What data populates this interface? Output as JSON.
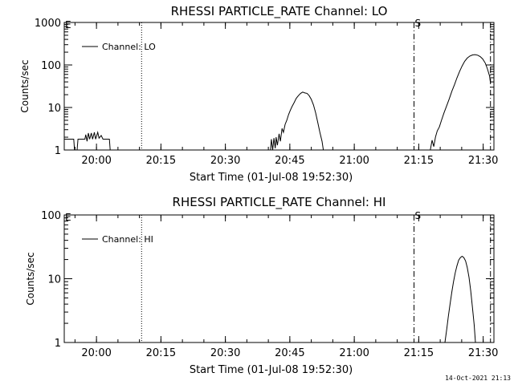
{
  "footer": {
    "timestamp": "14-Oct-2021 21:13"
  },
  "chart_data": [
    {
      "type": "line",
      "title": "RHESSI PARTICLE_RATE Channel: LO",
      "xlabel": "Start Time (01-Jul-08 19:52:30)",
      "ylabel": "Counts/sec",
      "yscale": "log",
      "ylim": [
        1,
        1000
      ],
      "xlim_minutes": [
        0,
        100
      ],
      "x_ticks": [
        {
          "min": 7.5,
          "label": "20:00"
        },
        {
          "min": 22.5,
          "label": "20:15"
        },
        {
          "min": 37.5,
          "label": "20:30"
        },
        {
          "min": 52.5,
          "label": "20:45"
        },
        {
          "min": 67.5,
          "label": "21:00"
        },
        {
          "min": 82.5,
          "label": "21:15"
        },
        {
          "min": 97.5,
          "label": "21:30"
        }
      ],
      "y_ticks": [
        {
          "v": 1,
          "label": "1"
        },
        {
          "v": 10,
          "label": "10"
        },
        {
          "v": 100,
          "label": "100"
        },
        {
          "v": 1000,
          "label": "1000"
        }
      ],
      "vlines": [
        {
          "min": 18.0,
          "style": "dotted"
        },
        {
          "min": 81.4,
          "style": "dashdot",
          "label": "S"
        },
        {
          "min": 99.2,
          "style": "dashdot"
        }
      ],
      "corner_marker": "E",
      "legend": {
        "label": "Channel: LO",
        "placement": "top-left"
      },
      "series": [
        {
          "name": "Channel: LO",
          "segments": [
            [
              [
                0,
                1.8
              ],
              [
                1.5,
                1.8
              ],
              [
                2.2,
                1.8
              ],
              [
                2.4,
                1.0
              ],
              [
                3.0,
                1.0
              ],
              [
                3.2,
                1.8
              ],
              [
                4.8,
                1.8
              ],
              [
                5.0,
                2.3
              ],
              [
                5.3,
                1.6
              ],
              [
                5.6,
                2.5
              ],
              [
                5.9,
                1.8
              ],
              [
                6.3,
                2.5
              ],
              [
                6.6,
                1.8
              ],
              [
                7.0,
                2.6
              ],
              [
                7.3,
                1.8
              ],
              [
                7.8,
                2.6
              ],
              [
                8.1,
                1.9
              ],
              [
                8.6,
                2.2
              ],
              [
                9.0,
                1.8
              ],
              [
                10.5,
                1.8
              ],
              [
                10.7,
                1.0
              ]
            ],
            [
              [
                48.0,
                1.0
              ],
              [
                48.2,
                1.8
              ],
              [
                48.5,
                1.0
              ],
              [
                48.8,
                1.9
              ],
              [
                49.1,
                1.1
              ],
              [
                49.3,
                2.0
              ],
              [
                49.6,
                1.3
              ],
              [
                50.0,
                2.4
              ],
              [
                50.3,
                1.6
              ],
              [
                50.7,
                3.2
              ],
              [
                51.0,
                2.6
              ],
              [
                51.4,
                4.0
              ],
              [
                51.8,
                5.0
              ],
              [
                52.2,
                6.8
              ],
              [
                52.6,
                8.5
              ],
              [
                53.0,
                10.5
              ],
              [
                53.5,
                13.0
              ],
              [
                54.0,
                16.5
              ],
              [
                54.5,
                19.0
              ],
              [
                55.0,
                21.5
              ],
              [
                55.5,
                23.0
              ],
              [
                56.0,
                22.0
              ],
              [
                56.5,
                21.5
              ],
              [
                57.0,
                19.0
              ],
              [
                57.5,
                15.5
              ],
              [
                58.0,
                11.5
              ],
              [
                58.5,
                7.5
              ],
              [
                59.0,
                4.5
              ],
              [
                59.5,
                2.6
              ],
              [
                60.0,
                1.6
              ],
              [
                60.3,
                1.0
              ]
            ],
            [
              [
                85.2,
                1.0
              ],
              [
                85.6,
                1.7
              ],
              [
                86.0,
                1.2
              ],
              [
                86.4,
                2.0
              ],
              [
                86.8,
                2.8
              ],
              [
                87.3,
                3.5
              ],
              [
                87.8,
                5.0
              ],
              [
                88.4,
                7.5
              ],
              [
                89.0,
                11.0
              ],
              [
                89.6,
                16.0
              ],
              [
                90.2,
                24.0
              ],
              [
                90.8,
                34.0
              ],
              [
                91.4,
                50.0
              ],
              [
                92.0,
                70.0
              ],
              [
                92.6,
                95.0
              ],
              [
                93.2,
                122.0
              ],
              [
                93.8,
                145.0
              ],
              [
                94.4,
                162.0
              ],
              [
                95.0,
                172.0
              ],
              [
                95.6,
                175.0
              ],
              [
                96.2,
                170.0
              ],
              [
                96.8,
                158.0
              ],
              [
                97.4,
                138.0
              ],
              [
                98.0,
                110.0
              ],
              [
                98.5,
                80.0
              ],
              [
                99.0,
                55.0
              ],
              [
                99.2,
                38.0
              ]
            ]
          ]
        }
      ]
    },
    {
      "type": "line",
      "title": "RHESSI PARTICLE_RATE Channel: HI",
      "xlabel": "Start Time (01-Jul-08 19:52:30)",
      "ylabel": "Counts/sec",
      "yscale": "log",
      "ylim": [
        1,
        100
      ],
      "xlim_minutes": [
        0,
        100
      ],
      "x_ticks": [
        {
          "min": 7.5,
          "label": "20:00"
        },
        {
          "min": 22.5,
          "label": "20:15"
        },
        {
          "min": 37.5,
          "label": "20:30"
        },
        {
          "min": 52.5,
          "label": "20:45"
        },
        {
          "min": 67.5,
          "label": "21:00"
        },
        {
          "min": 82.5,
          "label": "21:15"
        },
        {
          "min": 97.5,
          "label": "21:30"
        }
      ],
      "y_ticks": [
        {
          "v": 1,
          "label": "1"
        },
        {
          "v": 10,
          "label": "10"
        },
        {
          "v": 100,
          "label": "100"
        }
      ],
      "vlines": [
        {
          "min": 18.0,
          "style": "dotted"
        },
        {
          "min": 81.4,
          "style": "dashdot",
          "label": "S"
        },
        {
          "min": 99.2,
          "style": "dashdot"
        }
      ],
      "corner_marker": "E",
      "legend": {
        "label": "Channel: HI",
        "placement": "top-left"
      },
      "series": [
        {
          "name": "Channel: HI",
          "segments": [
            [
              [
                88.6,
                1.0
              ],
              [
                89.0,
                1.6
              ],
              [
                89.4,
                2.6
              ],
              [
                89.8,
                4.0
              ],
              [
                90.2,
                6.2
              ],
              [
                90.6,
                9.0
              ],
              [
                91.0,
                12.5
              ],
              [
                91.4,
                16.0
              ],
              [
                91.8,
                19.5
              ],
              [
                92.2,
                21.5
              ],
              [
                92.6,
                22.5
              ],
              [
                93.0,
                21.5
              ],
              [
                93.4,
                19.0
              ],
              [
                93.8,
                15.0
              ],
              [
                94.2,
                10.5
              ],
              [
                94.6,
                6.5
              ],
              [
                95.0,
                3.5
              ],
              [
                95.4,
                1.9
              ],
              [
                95.7,
                1.0
              ]
            ]
          ]
        }
      ]
    }
  ]
}
